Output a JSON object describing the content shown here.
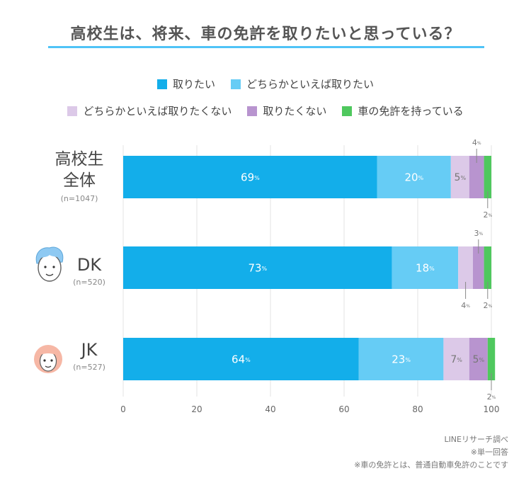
{
  "title": "高校生は、将来、車の免許を取りたいと思っている？",
  "colors": {
    "want": "#13aeea",
    "somewhat_want": "#66ccf5",
    "somewhat_not": "#dcc9e8",
    "not_want": "#b894cf",
    "have_license": "#4fc85e",
    "title_rule": "#4fc3f7"
  },
  "legend": {
    "row1": [
      "取りたい",
      "どちらかといえば取りたい"
    ],
    "row2": [
      "どちらかといえば取りたくない",
      "取りたくない",
      "車の免許を持っている"
    ]
  },
  "groups": [
    {
      "label_line1": "高校生",
      "label_line2": "全体",
      "n": "(n=1047)",
      "icon": "none"
    },
    {
      "label_line1": "DK",
      "label_line2": "",
      "n": "(n=520)",
      "icon": "boy-face-icon"
    },
    {
      "label_line1": "JK",
      "label_line2": "",
      "n": "(n=527)",
      "icon": "girl-face-icon"
    }
  ],
  "chart_data": {
    "type": "bar",
    "orientation": "horizontal",
    "stacked": true,
    "categories": [
      "高校生全体",
      "DK",
      "JK"
    ],
    "series": [
      {
        "name": "取りたい",
        "values": [
          69,
          73,
          64
        ]
      },
      {
        "name": "どちらかといえば取りたい",
        "values": [
          20,
          18,
          23
        ]
      },
      {
        "name": "どちらかといえば取りたくない",
        "values": [
          5,
          4,
          7
        ]
      },
      {
        "name": "取りたくない",
        "values": [
          4,
          3,
          5
        ]
      },
      {
        "name": "車の免許を持っている",
        "values": [
          2,
          2,
          2
        ]
      }
    ],
    "value_suffix": "%",
    "xlim": [
      0,
      100
    ],
    "xticks": [
      "0",
      "20",
      "40",
      "60",
      "80",
      "100"
    ],
    "legend_position": "top"
  },
  "footnotes": [
    "LINEリサーチ調べ",
    "※単一回答",
    "※車の免許とは、普通自動車免許のことです"
  ]
}
